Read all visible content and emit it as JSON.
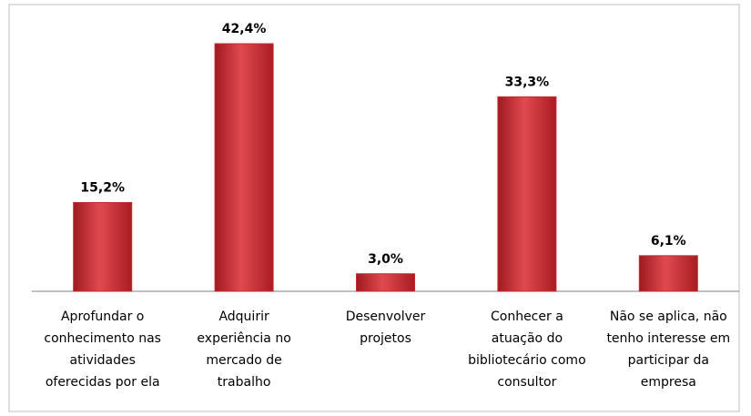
{
  "chart_data": {
    "type": "bar",
    "categories": [
      "Aprofundar o conhecimento nas atividades oferecidas por ela",
      "Adquirir experiência no mercado de trabalho",
      "Desenvolver projetos",
      "Conhecer a atuação do bibliotecário como consultor",
      "Não se aplica, não tenho interesse em participar da empresa"
    ],
    "values": [
      15.2,
      42.4,
      3.0,
      33.3,
      6.1
    ],
    "value_labels": [
      "15,2%",
      "42,4%",
      "3,0%",
      "33,3%",
      "6,1%"
    ],
    "color": "#c8282e"
  }
}
